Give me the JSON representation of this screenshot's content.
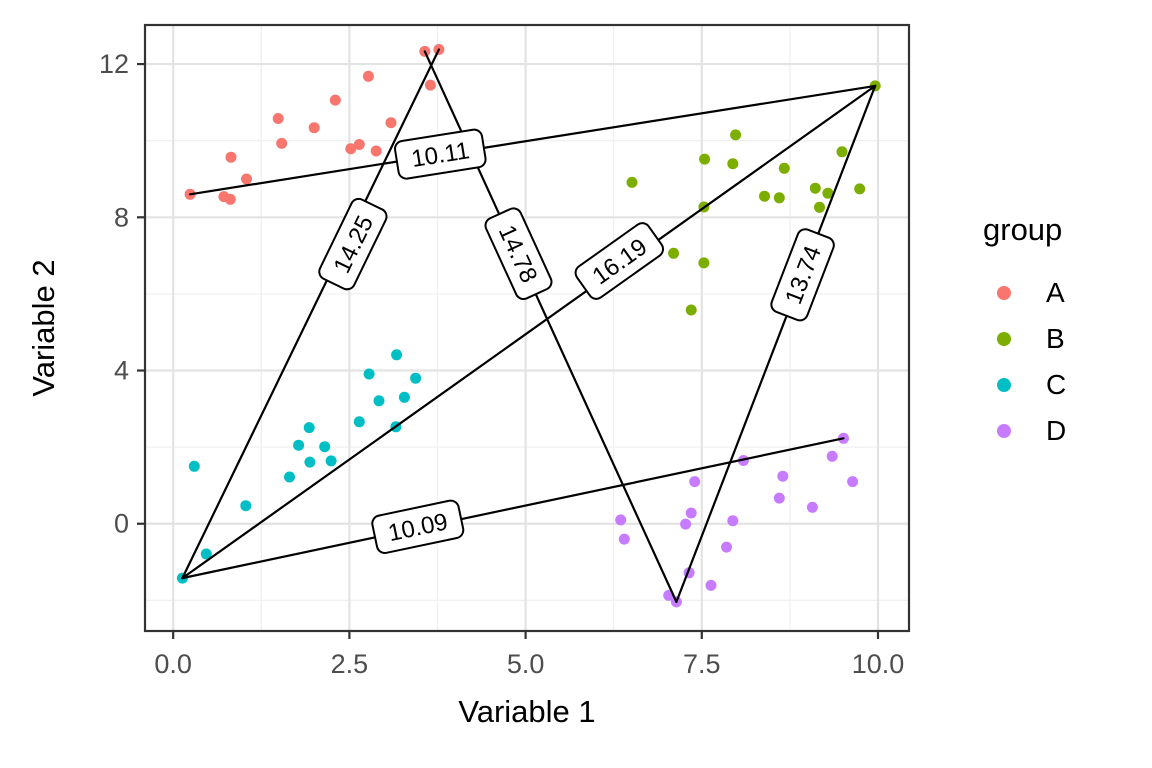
{
  "chart_data": {
    "type": "scatter",
    "title": "",
    "xlabel": "Variable 1",
    "ylabel": "Variable 2",
    "legend_title": "group",
    "legend_position": "right",
    "grid": true,
    "xlim": [
      -0.4,
      10.44
    ],
    "ylim": [
      -2.8,
      13.02
    ],
    "x_ticks": {
      "values": [
        0,
        2.5,
        5,
        7.5,
        10
      ],
      "labels": [
        "0.0",
        "2.5",
        "5.0",
        "7.5",
        "10.0"
      ]
    },
    "y_ticks": {
      "values": [
        0,
        4,
        8,
        12
      ],
      "labels": [
        "0",
        "4",
        "8",
        "12"
      ]
    },
    "x_minor": [
      1.25,
      3.75,
      6.25,
      8.75
    ],
    "y_minor": [
      -2,
      2,
      6,
      10
    ],
    "series": [
      {
        "name": "A",
        "color": "#F8766D",
        "points": [
          [
            0.24,
            8.6
          ],
          [
            0.72,
            8.54
          ],
          [
            0.81,
            8.47
          ],
          [
            0.82,
            9.57
          ],
          [
            1.04,
            9.0
          ],
          [
            1.49,
            10.58
          ],
          [
            1.54,
            9.93
          ],
          [
            2.0,
            10.34
          ],
          [
            2.3,
            11.06
          ],
          [
            2.77,
            11.68
          ],
          [
            2.52,
            9.79
          ],
          [
            2.64,
            9.9
          ],
          [
            2.88,
            9.73
          ],
          [
            3.09,
            10.47
          ],
          [
            3.57,
            12.33
          ],
          [
            3.77,
            12.38
          ],
          [
            3.65,
            11.45
          ]
        ]
      },
      {
        "name": "B",
        "color": "#7CAE00",
        "points": [
          [
            9.96,
            11.43
          ],
          [
            7.98,
            10.15
          ],
          [
            7.54,
            9.52
          ],
          [
            7.94,
            9.4
          ],
          [
            9.49,
            9.71
          ],
          [
            6.51,
            8.91
          ],
          [
            8.67,
            9.28
          ],
          [
            9.11,
            8.76
          ],
          [
            9.29,
            8.63
          ],
          [
            9.74,
            8.74
          ],
          [
            8.39,
            8.55
          ],
          [
            8.6,
            8.51
          ],
          [
            9.17,
            8.26
          ],
          [
            7.53,
            8.27
          ],
          [
            7.1,
            7.06
          ],
          [
            7.53,
            6.81
          ],
          [
            7.35,
            5.58
          ]
        ]
      },
      {
        "name": "C",
        "color": "#00BFC4",
        "points": [
          [
            0.13,
            -1.42
          ],
          [
            0.47,
            -0.79
          ],
          [
            0.3,
            1.5
          ],
          [
            1.03,
            0.47
          ],
          [
            1.65,
            1.22
          ],
          [
            1.78,
            2.05
          ],
          [
            1.93,
            2.51
          ],
          [
            1.94,
            1.61
          ],
          [
            2.15,
            2.01
          ],
          [
            2.24,
            1.64
          ],
          [
            2.64,
            2.66
          ],
          [
            2.78,
            3.91
          ],
          [
            2.92,
            3.21
          ],
          [
            3.17,
            4.41
          ],
          [
            3.28,
            3.3
          ],
          [
            3.44,
            3.8
          ],
          [
            3.16,
            2.53
          ]
        ]
      },
      {
        "name": "D",
        "color": "#C77CFF",
        "points": [
          [
            6.35,
            0.1
          ],
          [
            6.4,
            -0.4
          ],
          [
            7.4,
            1.1
          ],
          [
            7.35,
            0.28
          ],
          [
            7.27,
            -0.01
          ],
          [
            7.94,
            0.08
          ],
          [
            7.85,
            -0.61
          ],
          [
            8.09,
            1.65
          ],
          [
            8.65,
            1.24
          ],
          [
            8.6,
            0.67
          ],
          [
            9.07,
            0.43
          ],
          [
            9.35,
            1.76
          ],
          [
            9.51,
            2.23
          ],
          [
            9.64,
            1.1
          ],
          [
            7.32,
            -1.28
          ],
          [
            7.63,
            -1.61
          ],
          [
            7.03,
            -1.87
          ],
          [
            7.14,
            -2.04
          ]
        ]
      }
    ],
    "segments": [
      {
        "from": [
          0.24,
          8.6
        ],
        "to": [
          9.96,
          11.43
        ],
        "label": "10.11",
        "label_at": [
          3.79,
          9.65
        ]
      },
      {
        "from": [
          0.13,
          -1.42
        ],
        "to": [
          3.77,
          12.38
        ],
        "label": "14.25",
        "label_at": [
          2.55,
          7.3
        ]
      },
      {
        "from": [
          3.57,
          12.33
        ],
        "to": [
          7.14,
          -2.04
        ],
        "label": "14.78",
        "label_at": [
          4.9,
          7.05
        ]
      },
      {
        "from": [
          0.13,
          -1.42
        ],
        "to": [
          9.96,
          11.43
        ],
        "label": "16.19",
        "label_at": [
          6.33,
          6.86
        ]
      },
      {
        "from": [
          7.14,
          -2.04
        ],
        "to": [
          9.96,
          11.43
        ],
        "label": "13.74",
        "label_at": [
          8.93,
          6.5
        ]
      },
      {
        "from": [
          0.13,
          -1.42
        ],
        "to": [
          9.51,
          2.23
        ],
        "label": "10.09",
        "label_at": [
          3.47,
          -0.08
        ]
      }
    ],
    "colors": {
      "panel_background": "#FFFFFF",
      "grid_major": "#E3E3E3",
      "grid_minor": "#F0F0F0",
      "panel_border": "#333333",
      "tick": "#333333",
      "tick_label": "#4D4D4D",
      "axis_title": "#000000",
      "segment": "#000000",
      "label_fill": "#FFFFFF",
      "label_border": "#000000",
      "label_text": "#000000"
    }
  }
}
